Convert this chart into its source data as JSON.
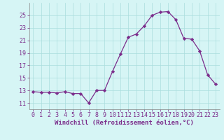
{
  "x": [
    0,
    1,
    2,
    3,
    4,
    5,
    6,
    7,
    8,
    9,
    10,
    11,
    12,
    13,
    14,
    15,
    16,
    17,
    18,
    19,
    20,
    21,
    22,
    23
  ],
  "y": [
    12.8,
    12.7,
    12.7,
    12.6,
    12.8,
    12.5,
    12.5,
    11.0,
    13.0,
    13.0,
    16.0,
    18.8,
    21.5,
    22.0,
    23.3,
    25.0,
    25.5,
    25.6,
    24.3,
    21.3,
    21.2,
    19.3,
    15.5,
    14.0
  ],
  "line_color": "#7b2d8b",
  "marker": "D",
  "marker_size": 2.2,
  "bg_color": "#d6f5f5",
  "grid_color": "#aadddd",
  "xlabel": "Windchill (Refroidissement éolien,°C)",
  "ylim": [
    10,
    27
  ],
  "xlim": [
    -0.5,
    23.5
  ],
  "yticks": [
    11,
    13,
    15,
    17,
    19,
    21,
    23,
    25
  ],
  "xticks": [
    0,
    1,
    2,
    3,
    4,
    5,
    6,
    7,
    8,
    9,
    10,
    11,
    12,
    13,
    14,
    15,
    16,
    17,
    18,
    19,
    20,
    21,
    22,
    23
  ],
  "tick_color": "#7b2d8b",
  "tick_fontsize": 6.0,
  "xlabel_fontsize": 6.5,
  "spine_color": "#888888",
  "linewidth": 0.9
}
